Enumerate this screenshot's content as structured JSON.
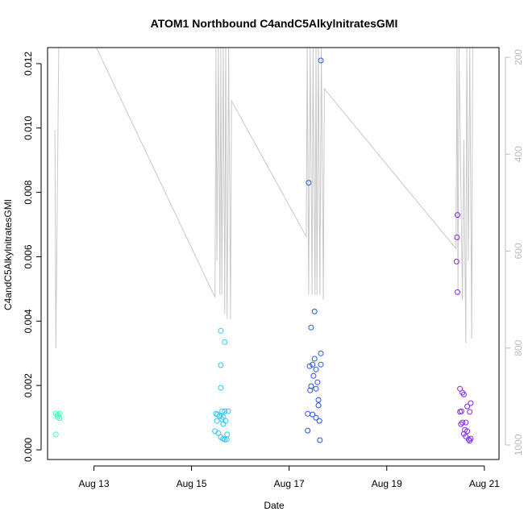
{
  "chart_data": {
    "type": "scatter",
    "title": "ATOM1 Northbound C4andC5AlkylnitratesGMI",
    "xlabel": "Date",
    "ylabel": "C4andC5AlkylnitratesGMI",
    "x_ticks": [
      "Aug 13",
      "Aug 15",
      "Aug 17",
      "Aug 19",
      "Aug 21"
    ],
    "x_tick_days": [
      13,
      15,
      17,
      19,
      21
    ],
    "xlim_days": [
      12.05,
      21.3
    ],
    "y_ticks": [
      "0.000",
      "0.002",
      "0.004",
      "0.006",
      "0.008",
      "0.010",
      "0.012"
    ],
    "ylim": [
      -0.0003,
      0.0125
    ],
    "y2_ticks": [
      "200",
      "400",
      "600",
      "800",
      "1000"
    ],
    "y2lim": [
      1030,
      180
    ],
    "colors": {
      "flight1": "#40ffb4",
      "flight2": "#28c8ff",
      "flight3": "#2850ff",
      "flight4": "#8228ff",
      "pressure_line": "#c8c8c8",
      "axis": "#000000",
      "right_axis": "#bdbdbd"
    },
    "series": [
      {
        "color_key": "flight1",
        "points": [
          [
            12.22,
            0.00112
          ],
          [
            12.26,
            0.00108
          ],
          [
            12.3,
            0.00112
          ],
          [
            12.25,
            0.00102
          ],
          [
            12.3,
            0.00098
          ],
          [
            12.22,
            0.00048
          ]
        ]
      },
      {
        "color_key": "flight2",
        "points": [
          [
            15.6,
            0.0037
          ],
          [
            15.68,
            0.00335
          ],
          [
            15.6,
            0.00263
          ],
          [
            15.6,
            0.00193
          ],
          [
            15.5,
            0.00112
          ],
          [
            15.53,
            0.0011
          ],
          [
            15.58,
            0.00105
          ],
          [
            15.63,
            0.0012
          ],
          [
            15.68,
            0.0012
          ],
          [
            15.75,
            0.0012
          ],
          [
            15.65,
            0.00102
          ],
          [
            15.62,
            0.00095
          ],
          [
            15.52,
            0.0009
          ],
          [
            15.7,
            0.0009
          ],
          [
            15.65,
            0.0008
          ],
          [
            15.48,
            0.00058
          ],
          [
            15.55,
            0.00052
          ],
          [
            15.73,
            0.00048
          ],
          [
            15.6,
            0.0004
          ],
          [
            15.65,
            0.00035
          ],
          [
            15.68,
            0.00032
          ],
          [
            15.72,
            0.00032
          ]
        ]
      },
      {
        "color_key": "flight3",
        "points": [
          [
            17.65,
            0.0121
          ],
          [
            17.4,
            0.0083
          ],
          [
            17.52,
            0.0043
          ],
          [
            17.45,
            0.0038
          ],
          [
            17.65,
            0.003
          ],
          [
            17.52,
            0.00283
          ],
          [
            17.42,
            0.0026
          ],
          [
            17.48,
            0.00265
          ],
          [
            17.65,
            0.00265
          ],
          [
            17.55,
            0.0025
          ],
          [
            17.5,
            0.0023
          ],
          [
            17.58,
            0.0021
          ],
          [
            17.45,
            0.00198
          ],
          [
            17.55,
            0.0019
          ],
          [
            17.43,
            0.00185
          ],
          [
            17.6,
            0.00155
          ],
          [
            17.6,
            0.00138
          ],
          [
            17.38,
            0.00112
          ],
          [
            17.48,
            0.0011
          ],
          [
            17.55,
            0.001
          ],
          [
            17.62,
            0.0009
          ],
          [
            17.38,
            0.0006
          ],
          [
            17.63,
            0.0003
          ]
        ]
      },
      {
        "color_key": "flight4",
        "points": [
          [
            20.45,
            0.0073
          ],
          [
            20.44,
            0.0066
          ],
          [
            20.43,
            0.00585
          ],
          [
            20.45,
            0.0049
          ],
          [
            20.5,
            0.0019
          ],
          [
            20.55,
            0.00178
          ],
          [
            20.58,
            0.00172
          ],
          [
            20.72,
            0.00145
          ],
          [
            20.65,
            0.00135
          ],
          [
            20.53,
            0.0012
          ],
          [
            20.5,
            0.00118
          ],
          [
            20.7,
            0.00118
          ],
          [
            20.55,
            0.00085
          ],
          [
            20.62,
            0.00085
          ],
          [
            20.52,
            0.0008
          ],
          [
            20.6,
            0.00062
          ],
          [
            20.65,
            0.00058
          ],
          [
            20.58,
            0.0005
          ],
          [
            20.62,
            0.00042
          ],
          [
            20.68,
            0.00032
          ],
          [
            20.72,
            0.00035
          ],
          [
            20.7,
            0.00028
          ]
        ]
      }
    ],
    "pressure_line": [
      [
        12.2,
        350
      ],
      [
        12.22,
        800
      ],
      [
        12.28,
        180
      ],
      [
        12.3,
        180
      ],
      [
        12.33,
        180
      ],
      [
        12.36,
        180
      ],
      [
        13.05,
        180
      ],
      [
        15.48,
        695
      ],
      [
        15.5,
        180
      ],
      [
        15.52,
        620
      ],
      [
        15.55,
        180
      ],
      [
        15.58,
        690
      ],
      [
        15.6,
        180
      ],
      [
        15.62,
        690
      ],
      [
        15.65,
        180
      ],
      [
        15.68,
        730
      ],
      [
        15.7,
        180
      ],
      [
        15.73,
        740
      ],
      [
        15.76,
        180
      ],
      [
        15.8,
        740
      ],
      [
        15.82,
        290
      ],
      [
        17.35,
        570
      ],
      [
        17.37,
        180
      ],
      [
        17.4,
        690
      ],
      [
        17.43,
        180
      ],
      [
        17.47,
        690
      ],
      [
        17.49,
        180
      ],
      [
        17.53,
        690
      ],
      [
        17.55,
        180
      ],
      [
        17.57,
        690
      ],
      [
        17.6,
        180
      ],
      [
        17.63,
        690
      ],
      [
        17.66,
        180
      ],
      [
        17.7,
        700
      ],
      [
        17.72,
        265
      ],
      [
        20.42,
        595
      ],
      [
        20.44,
        180
      ],
      [
        20.46,
        690
      ],
      [
        20.48,
        180
      ],
      [
        20.55,
        700
      ],
      [
        20.58,
        370
      ],
      [
        20.62,
        790
      ],
      [
        20.64,
        180
      ],
      [
        20.67,
        620
      ],
      [
        20.7,
        180
      ],
      [
        20.74,
        780
      ],
      [
        20.76,
        180
      ],
      [
        20.8,
        180
      ]
    ]
  }
}
